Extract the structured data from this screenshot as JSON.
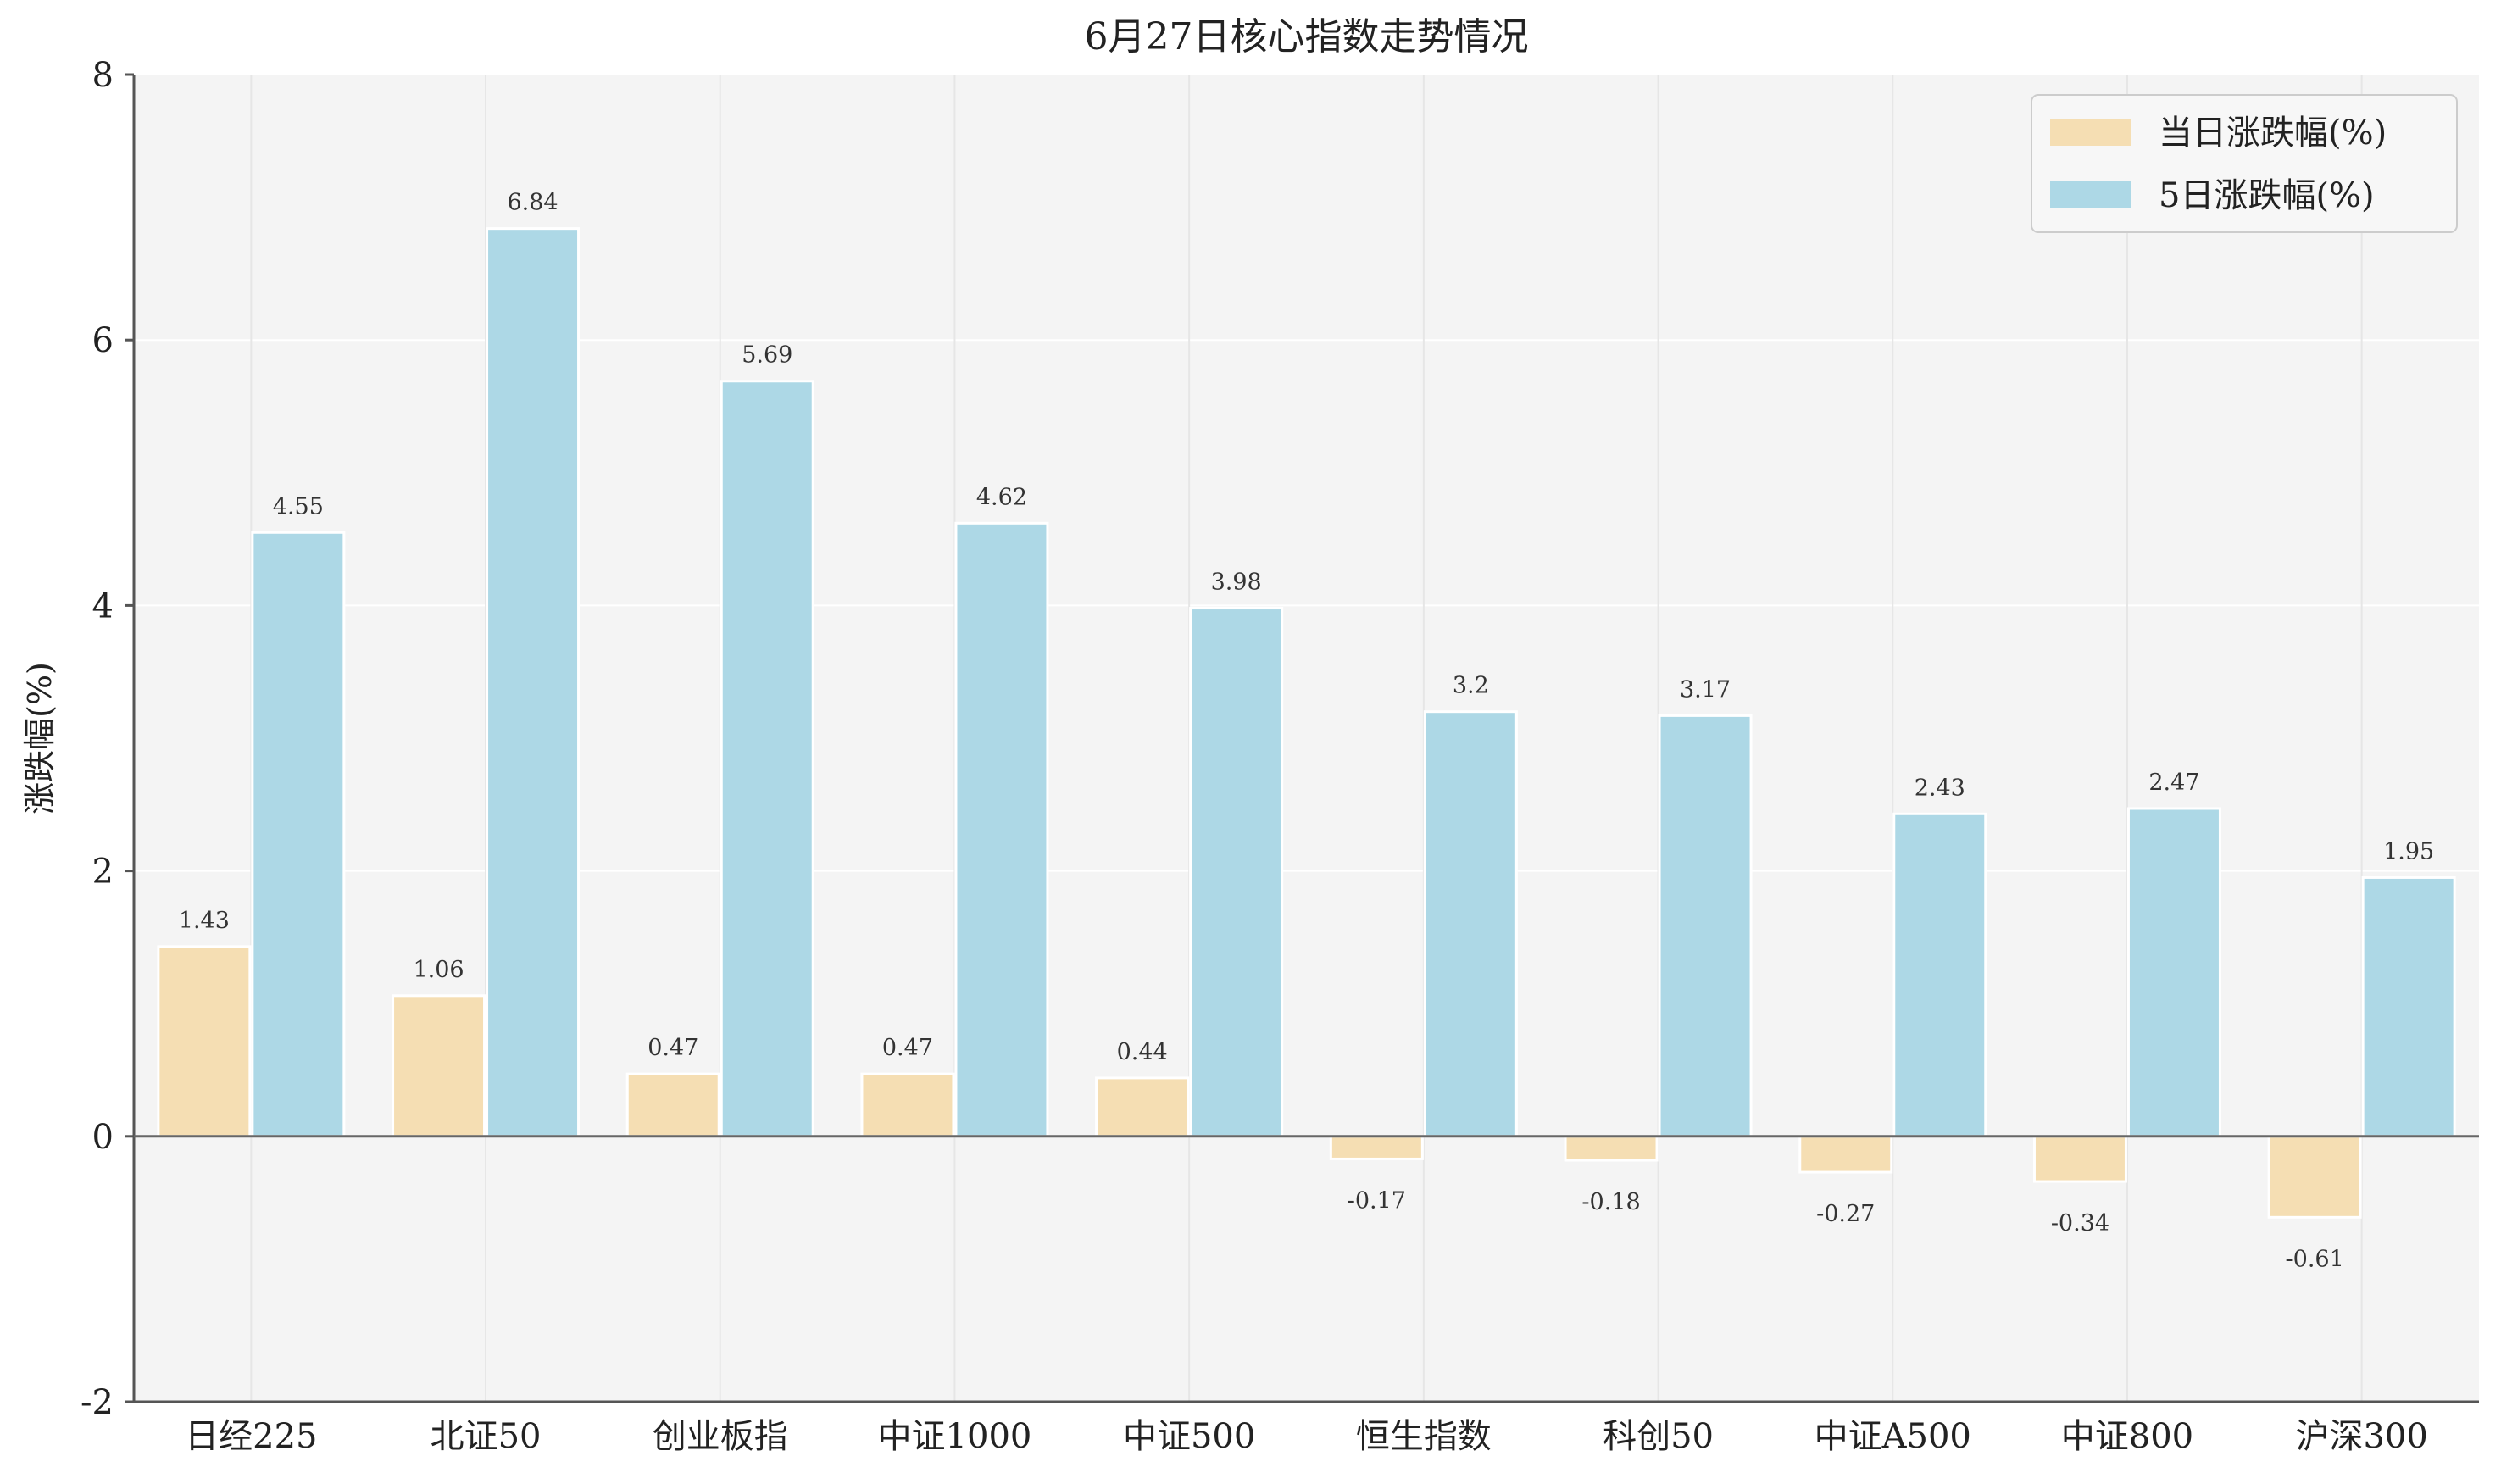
{
  "chart_data": {
    "type": "bar",
    "title": "6月27日核心指数走势情况",
    "xlabel": "",
    "ylabel": "涨跌幅(%)",
    "ylim": [
      -2,
      8
    ],
    "yticks": [
      "-2",
      "0",
      "2",
      "4",
      "6",
      "8"
    ],
    "grid": true,
    "legend_position": "top-right",
    "categories": [
      "日经225",
      "北证50",
      "创业板指",
      "中证1000",
      "中证500",
      "恒生指数",
      "科创50",
      "中证A500",
      "中证800",
      "沪深300"
    ],
    "series": [
      {
        "name": "当日涨跌幅(%)",
        "color": "#F5DEB3",
        "values": [
          1.43,
          1.06,
          0.47,
          0.47,
          0.44,
          -0.17,
          -0.18,
          -0.27,
          -0.34,
          -0.61
        ],
        "labels": [
          "1.43",
          "1.06",
          "0.47",
          "0.47",
          "0.44",
          "-0.17",
          "-0.18",
          "-0.27",
          "-0.34",
          "-0.61"
        ]
      },
      {
        "name": "5日涨跌幅(%)",
        "color": "#ADD8E6",
        "values": [
          4.55,
          6.84,
          5.69,
          4.62,
          3.98,
          3.2,
          3.17,
          2.43,
          2.47,
          1.95
        ],
        "labels": [
          "4.55",
          "6.84",
          "5.69",
          "4.62",
          "3.98",
          "3.2",
          "3.17",
          "2.43",
          "2.47",
          "1.95"
        ]
      }
    ]
  }
}
